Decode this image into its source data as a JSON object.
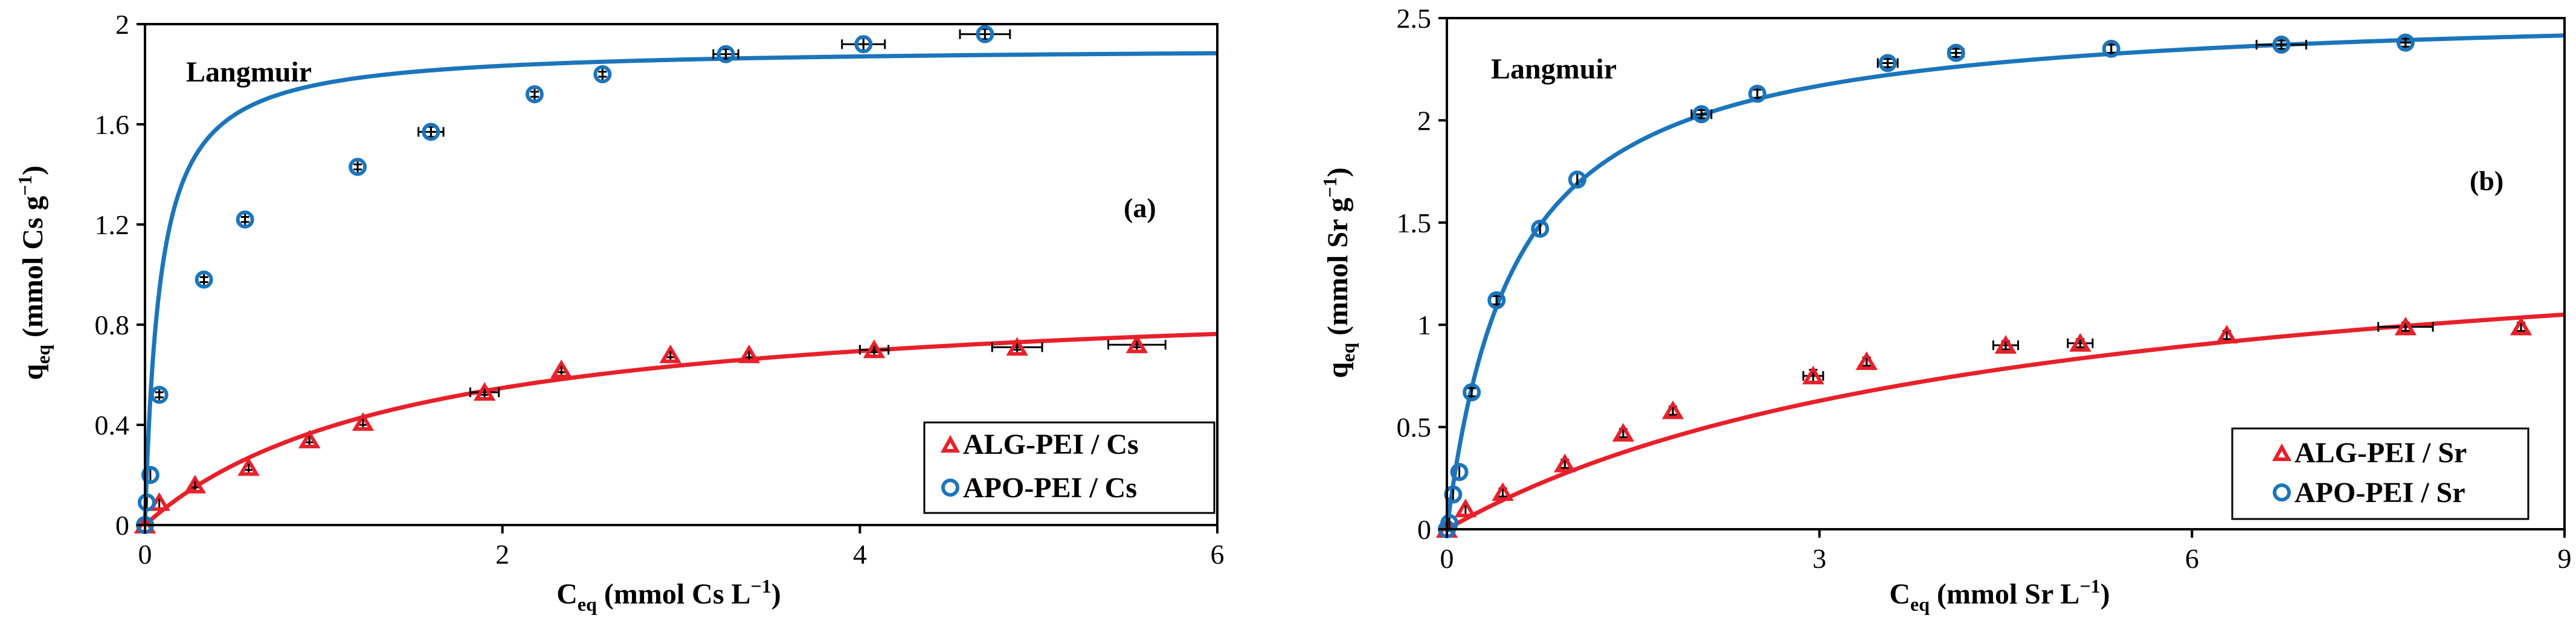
{
  "chart_data": [
    {
      "type": "scatter",
      "panel_label": "(a)",
      "model_label": "Langmuir",
      "xlabel": {
        "main": "C",
        "sub": "eq",
        "rest": " (mmol Cs L",
        "sup": "−1",
        "end": ")"
      },
      "ylabel": {
        "main": "q",
        "sub": "eq",
        "rest": " (mmol Cs g",
        "sup": "−1",
        "end": ")"
      },
      "xlim": [
        0,
        6
      ],
      "ylim": [
        0,
        2
      ],
      "xticks": [
        0,
        2,
        4,
        6
      ],
      "xtick_labels": [
        "0",
        "2",
        "4",
        "6"
      ],
      "yticks": [
        0,
        0.4,
        0.8,
        1.2,
        1.6,
        2
      ],
      "ytick_labels": [
        "0",
        "0.4",
        "0.8",
        "1.2",
        "1.6",
        "2"
      ],
      "legend_position": "bottom-right",
      "series": [
        {
          "name": "ALG-PEI / Cs",
          "marker": "triangle",
          "color": "#e8202a",
          "x": [
            0,
            0.08,
            0.28,
            0.58,
            0.92,
            1.22,
            1.9,
            2.33,
            2.94,
            3.38,
            4.08,
            4.88,
            5.55
          ],
          "y": [
            0,
            0.09,
            0.16,
            0.23,
            0.34,
            0.41,
            0.53,
            0.62,
            0.68,
            0.68,
            0.7,
            0.71,
            0.72
          ],
          "xerr": [
            0,
            0,
            0,
            0,
            0,
            0,
            0.08,
            0,
            0,
            0,
            0.08,
            0.14,
            0.16
          ],
          "yerr": [
            0,
            0,
            0.01,
            0.01,
            0.01,
            0.01,
            0.01,
            0.01,
            0.01,
            0.01,
            0.01,
            0.01,
            0.01
          ],
          "fit": {
            "model": "langmuir",
            "qmax": 0.95,
            "K": 0.68
          }
        },
        {
          "name": "APO-PEI / Cs",
          "marker": "circle",
          "color": "#1b75bc",
          "x": [
            0,
            0.01,
            0.03,
            0.08,
            0.33,
            0.56,
            1.19,
            1.6,
            2.18,
            2.56,
            3.25,
            4.02,
            4.7
          ],
          "y": [
            0,
            0.09,
            0.2,
            0.52,
            0.98,
            1.22,
            1.43,
            1.57,
            1.72,
            1.8,
            1.88,
            1.92,
            1.96
          ],
          "xerr": [
            0,
            0,
            0,
            0,
            0,
            0,
            0,
            0.07,
            0,
            0,
            0.07,
            0.12,
            0.14
          ],
          "yerr": [
            0,
            0,
            0,
            0.01,
            0.01,
            0.01,
            0.01,
            0.02,
            0.01,
            0.01,
            0.02,
            0.03,
            0.02
          ],
          "fit": {
            "model": "langmuir",
            "qmax": 1.91,
            "K": 12
          }
        }
      ]
    },
    {
      "type": "scatter",
      "panel_label": "(b)",
      "model_label": "Langmuir",
      "xlabel": {
        "main": "C",
        "sub": "eq",
        "rest": " (mmol Sr L",
        "sup": "−1",
        "end": ")"
      },
      "ylabel": {
        "main": "q",
        "sub": "eq",
        "rest": " (mmol Sr g",
        "sup": "−1",
        "end": ")"
      },
      "xlim": [
        0,
        9
      ],
      "ylim": [
        0,
        2.5
      ],
      "xticks": [
        0,
        3,
        6,
        9
      ],
      "xtick_labels": [
        "0",
        "3",
        "6",
        "9"
      ],
      "yticks": [
        0,
        0.5,
        1,
        1.5,
        2,
        2.5
      ],
      "ytick_labels": [
        "0",
        "0.5",
        "1",
        "1.5",
        "2",
        "2.5"
      ],
      "legend_position": "bottom-right",
      "series": [
        {
          "name": "ALG-PEI / Sr",
          "marker": "triangle",
          "color": "#e8202a",
          "x": [
            0,
            0.15,
            0.45,
            0.95,
            1.42,
            1.82,
            2.95,
            3.38,
            4.5,
            5.1,
            6.28,
            7.72,
            8.65
          ],
          "y": [
            0,
            0.1,
            0.18,
            0.32,
            0.47,
            0.58,
            0.75,
            0.82,
            0.9,
            0.91,
            0.95,
            0.99,
            0.99
          ],
          "xerr": [
            0,
            0,
            0,
            0,
            0,
            0,
            0.08,
            0,
            0.1,
            0.1,
            0,
            0.22,
            0
          ],
          "yerr": [
            0,
            0,
            0.02,
            0.02,
            0.02,
            0.02,
            0.03,
            0.02,
            0.02,
            0.02,
            0.02,
            0.02,
            0.02
          ],
          "fit": {
            "model": "langmuir",
            "qmax": 1.58,
            "K": 0.22
          }
        },
        {
          "name": "APO-PEI / Sr",
          "marker": "circle",
          "color": "#1b75bc",
          "x": [
            0,
            0.02,
            0.05,
            0.1,
            0.2,
            0.4,
            0.75,
            1.05,
            2.05,
            2.5,
            3.55,
            4.1,
            5.35,
            6.72,
            7.72
          ],
          "y": [
            0,
            0.03,
            0.17,
            0.28,
            0.67,
            1.12,
            1.47,
            1.71,
            2.03,
            2.13,
            2.28,
            2.33,
            2.35,
            2.37,
            2.38
          ],
          "xerr": [
            0,
            0,
            0,
            0,
            0,
            0,
            0,
            0,
            0.08,
            0,
            0.08,
            0.06,
            0,
            0.2,
            0.05
          ],
          "yerr": [
            0,
            0,
            0,
            0,
            0.02,
            0.02,
            0.03,
            0.03,
            0.02,
            0.02,
            0.02,
            0.02,
            0.02,
            0.02,
            0.02
          ],
          "fit": {
            "model": "langmuir",
            "qmax": 2.56,
            "K": 1.85
          }
        }
      ]
    }
  ]
}
